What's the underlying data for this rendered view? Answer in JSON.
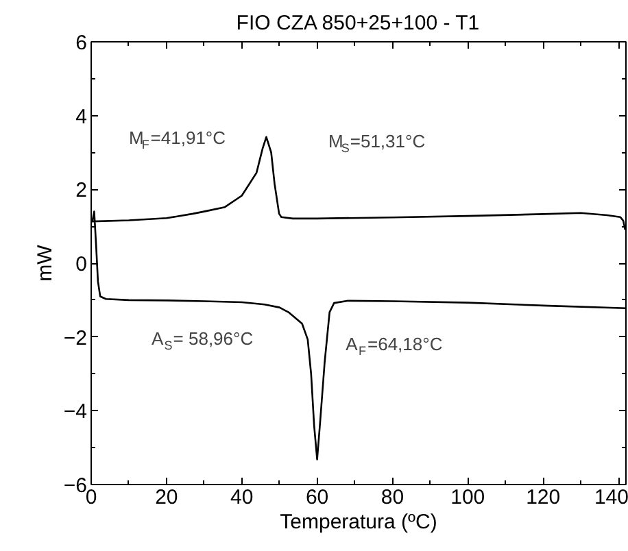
{
  "chart_data": {
    "type": "line",
    "title": "FIO CZA 850+25+100 - T1",
    "xlabel": "Temperatura (ºC)",
    "ylabel": "mW",
    "xlim": [
      0,
      142
    ],
    "ylim": [
      -6,
      6
    ],
    "xticks": [
      0,
      20,
      40,
      60,
      80,
      100,
      120,
      140
    ],
    "yticks": [
      -6,
      -4,
      -2,
      0,
      2,
      4,
      6
    ],
    "grid": false,
    "marker": "none",
    "line_style": "solid",
    "annotations": [
      "M$_{F}$=41,91°C",
      "M$_{S}$=51,31°C",
      "A$_{S}$= 58,96°C",
      "A$_{F}$=64,18°C"
    ],
    "series": [
      {
        "color": "#000000",
        "x": [
          141.8,
          141.3,
          140.5,
          137,
          130,
          120,
          100,
          80,
          60,
          53.5,
          50.5,
          49.9,
          48.7,
          47.8,
          46.5,
          45.5,
          43.9,
          40,
          35.5,
          30,
          27,
          20,
          10,
          0.3,
          0.8,
          1.3,
          1.8,
          2.4,
          3.9,
          10,
          20,
          30,
          40,
          46,
          50,
          52.4,
          56,
          57.5,
          58.4,
          59.2,
          60,
          60.8,
          62,
          63.3,
          64.5,
          68,
          80,
          100,
          120,
          142
        ],
        "values": [
          0.9,
          1.15,
          1.25,
          1.3,
          1.36,
          1.33,
          1.28,
          1.24,
          1.21,
          1.21,
          1.25,
          1.34,
          2.15,
          3.0,
          3.42,
          3.1,
          2.45,
          1.83,
          1.52,
          1.4,
          1.34,
          1.22,
          1.16,
          1.13,
          1.4,
          0.5,
          -0.5,
          -0.9,
          -0.97,
          -1.0,
          -1.01,
          -1.03,
          -1.06,
          -1.12,
          -1.2,
          -1.33,
          -1.64,
          -2.07,
          -3.0,
          -4.4,
          -5.32,
          -4.3,
          -2.68,
          -1.33,
          -1.08,
          -1.02,
          -1.03,
          -1.07,
          -1.15,
          -1.22
        ]
      }
    ]
  }
}
